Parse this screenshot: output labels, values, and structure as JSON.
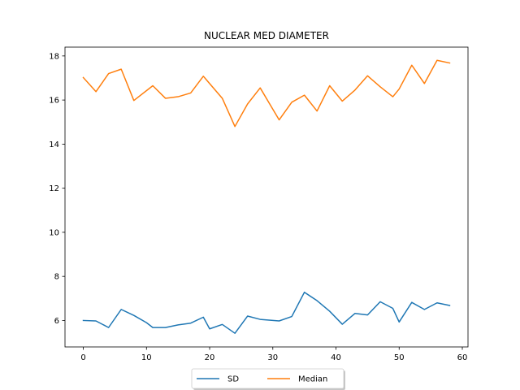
{
  "chart_data": {
    "type": "line",
    "title": "NUCLEAR MED DIAMETER",
    "xlabel": "",
    "ylabel": "",
    "xlim": [
      -2.9,
      60.9
    ],
    "ylim": [
      4.8,
      18.4
    ],
    "xticks": [
      0,
      10,
      20,
      30,
      40,
      50,
      60
    ],
    "yticks": [
      6,
      8,
      10,
      12,
      14,
      16,
      18
    ],
    "grid": false,
    "legend_position": "bottom-center",
    "series": [
      {
        "name": "SD",
        "color": "#1f77b4",
        "x": [
          0,
          2,
          4,
          6,
          8,
          10,
          11,
          13,
          15,
          17,
          19,
          20,
          22,
          24,
          26,
          28,
          31,
          33,
          35,
          37,
          39,
          41,
          43,
          45,
          47,
          49,
          50,
          52,
          54,
          56,
          58
        ],
        "y": [
          6.0,
          5.98,
          5.68,
          6.5,
          6.23,
          5.9,
          5.68,
          5.68,
          5.8,
          5.88,
          6.15,
          5.62,
          5.82,
          5.42,
          6.2,
          6.05,
          5.98,
          6.18,
          7.28,
          6.9,
          6.42,
          5.83,
          6.32,
          6.25,
          6.85,
          6.55,
          5.93,
          6.82,
          6.5,
          6.8,
          6.68
        ]
      },
      {
        "name": "Median",
        "color": "#ff7f0e",
        "x": [
          0,
          2,
          4,
          6,
          8,
          11,
          13,
          15,
          17,
          19,
          22,
          24,
          26,
          28,
          31,
          33,
          35,
          37,
          39,
          41,
          43,
          45,
          47,
          49,
          50,
          52,
          54,
          56,
          58
        ],
        "y": [
          17.02,
          16.38,
          17.2,
          17.4,
          15.98,
          16.65,
          16.08,
          16.15,
          16.32,
          17.08,
          16.08,
          14.8,
          15.82,
          16.55,
          15.1,
          15.9,
          16.22,
          15.5,
          16.65,
          15.95,
          16.45,
          17.1,
          16.6,
          16.15,
          16.5,
          17.58,
          16.75,
          17.8,
          17.68
        ]
      }
    ]
  }
}
